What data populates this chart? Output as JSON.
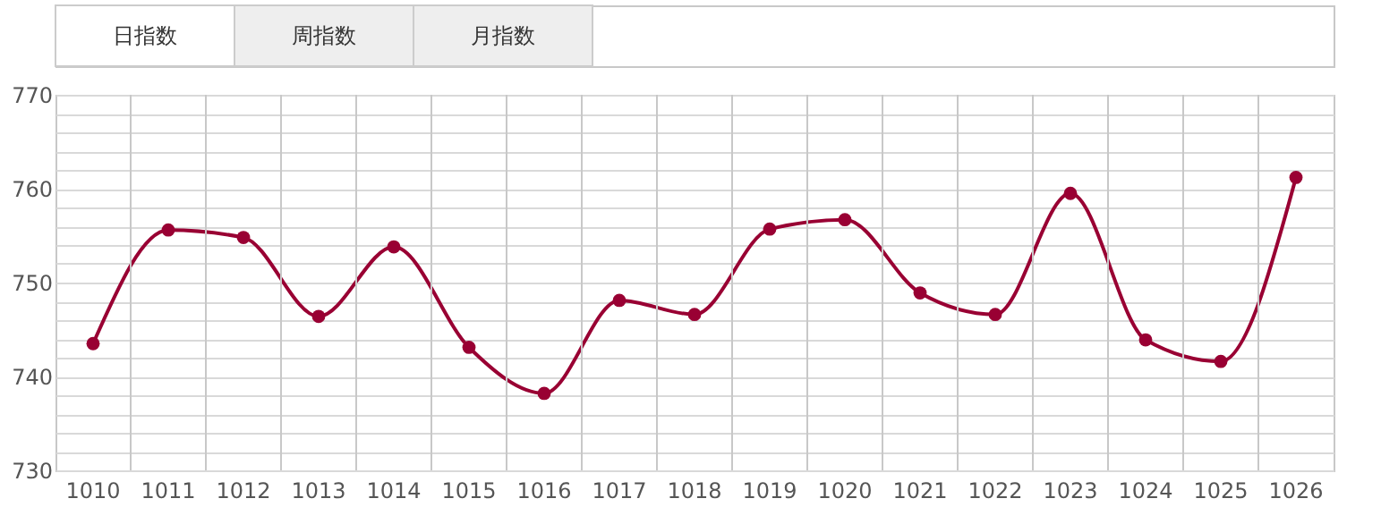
{
  "chart_data": {
    "type": "line",
    "annotations": [
      "日指数",
      "周指数",
      "月指数"
    ],
    "categories": [
      "1010",
      "1011",
      "1012",
      "1013",
      "1014",
      "1015",
      "1016",
      "1017",
      "1018",
      "1019",
      "1020",
      "1021",
      "1022",
      "1023",
      "1024",
      "1025",
      "1026"
    ],
    "series": [
      {
        "color": "#990033",
        "values": [
          743.5,
          755.6,
          754.8,
          746.4,
          753.8,
          743.1,
          738.2,
          748.1,
          746.6,
          755.7,
          756.7,
          748.9,
          746.6,
          759.5,
          743.9,
          741.6,
          761.2
        ]
      }
    ],
    "ylim": [
      730,
      770
    ],
    "yticks": [
      730,
      {
        "value": 732,
        "label": null
      },
      {
        "value": 734,
        "label": null
      },
      {
        "value": 736,
        "label": null
      },
      {
        "value": 738,
        "label": null
      },
      740,
      {
        "value": 742,
        "label": null
      },
      {
        "value": 744,
        "label": null
      },
      {
        "value": 746,
        "label": null
      },
      {
        "value": 748,
        "label": null
      },
      750,
      {
        "value": 752,
        "label": null
      },
      {
        "value": 754,
        "label": null
      },
      {
        "value": 756,
        "label": null
      },
      {
        "value": 758,
        "label": null
      },
      760,
      {
        "value": 762,
        "label": null
      },
      {
        "value": 764,
        "label": null
      },
      {
        "value": 766,
        "label": null
      },
      {
        "value": 768,
        "label": null
      },
      770
    ],
    "grid": true,
    "marker": "circle",
    "line_style": "solid",
    "legend": false
  }
}
